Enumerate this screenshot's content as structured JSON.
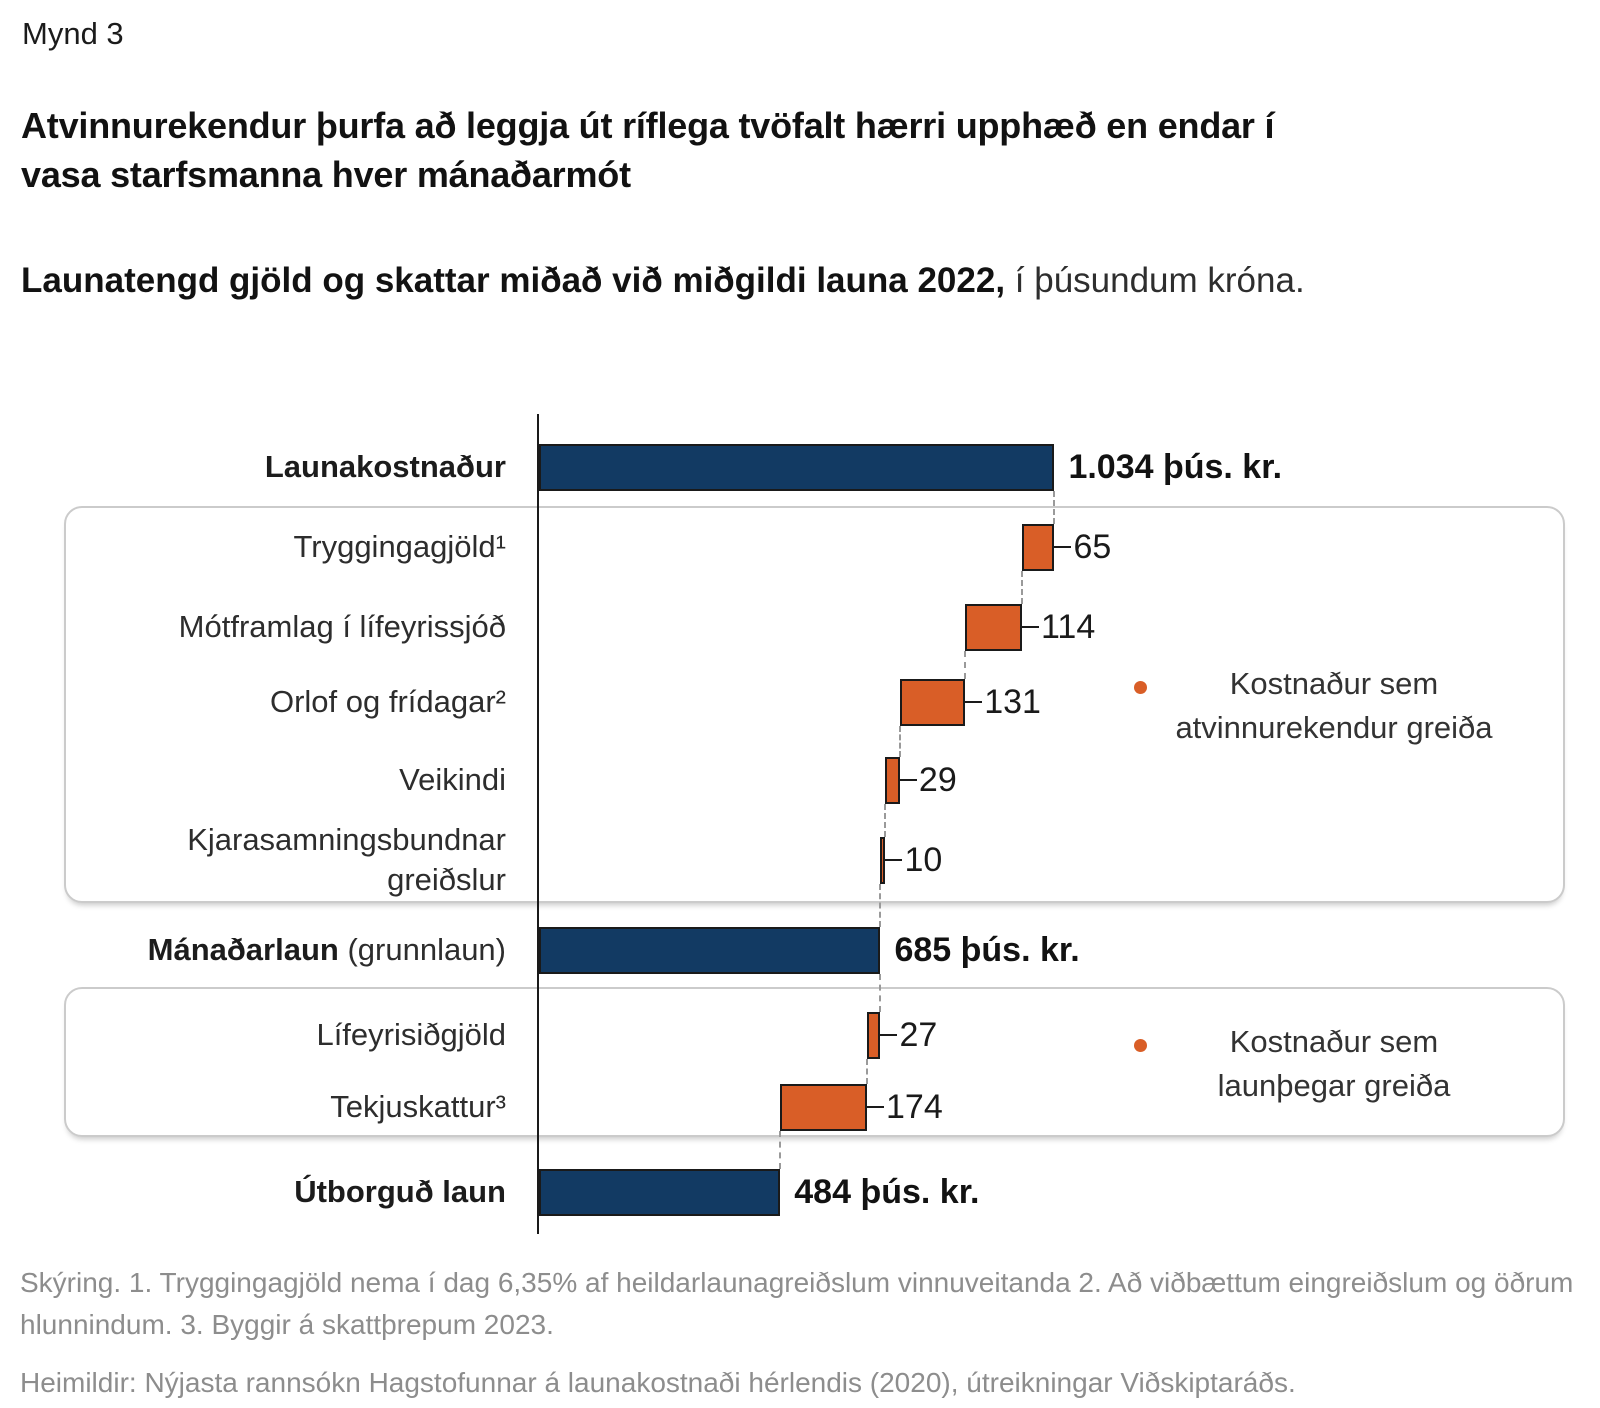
{
  "header": {
    "figure_label": "Mynd 3",
    "title_line1": "Atvinnurekendur þurfa að leggja út ríflega tvöfalt hærri upphæð en endar í",
    "title_line2": "vasa starfsmanna hver mánaðarmót",
    "subtitle_bold": "Launatengd gjöld og skattar miðað við miðgildi launa 2022,",
    "subtitle_regular": " í þúsundum króna."
  },
  "chart_data": {
    "type": "bar",
    "subtype": "horizontal-waterfall",
    "title": "Launatengd gjöld og skattar miðað við miðgildi launa 2022, í þúsundum króna",
    "unit": "þúsund krónur",
    "axis_range": [
      0,
      1100
    ],
    "grid": false,
    "colors": {
      "navy": "#123A63",
      "orange": "#D95E27",
      "bar_border": "#1A1A1A",
      "connector": "#9A9A9A",
      "box_border": "#CBCBCB"
    },
    "rows": [
      {
        "label_lines": [
          [
            {
              "t": "Launakostnaður",
              "b": true
            }
          ]
        ],
        "value": 1034,
        "from": 0,
        "to": 1034,
        "fill": "navy",
        "value_label": "1.034 þús. kr.",
        "value_bold": true
      },
      {
        "label_lines": [
          [
            {
              "t": "Tryggingagjöld¹"
            }
          ]
        ],
        "value": 65,
        "from": 969,
        "to": 1034,
        "fill": "orange",
        "value_label": "65",
        "group": 0
      },
      {
        "label_lines": [
          [
            {
              "t": "Mótframlag í lífeyrissjóð"
            }
          ]
        ],
        "value": 114,
        "from": 855,
        "to": 969,
        "fill": "orange",
        "value_label": "114",
        "group": 0
      },
      {
        "label_lines": [
          [
            {
              "t": "Orlof og frídagar²"
            }
          ]
        ],
        "value": 131,
        "from": 724,
        "to": 855,
        "fill": "orange",
        "value_label": "131",
        "group": 0
      },
      {
        "label_lines": [
          [
            {
              "t": "Veikindi"
            }
          ]
        ],
        "value": 29,
        "from": 695,
        "to": 724,
        "fill": "orange",
        "value_label": "29",
        "group": 0
      },
      {
        "label_lines": [
          [
            {
              "t": "Kjarasamningsbundnar"
            }
          ],
          [
            {
              "t": "greiðslur"
            }
          ]
        ],
        "value": 10,
        "from": 685,
        "to": 695,
        "fill": "orange",
        "value_label": "10",
        "group": 0
      },
      {
        "label_lines": [
          [
            {
              "t": "Mánaðarlaun",
              "b": true
            },
            {
              "t": " (grunnlaun)"
            }
          ]
        ],
        "value": 685,
        "from": 0,
        "to": 685,
        "fill": "navy",
        "value_label": "685 þús. kr.",
        "value_bold": true
      },
      {
        "label_lines": [
          [
            {
              "t": "Lífeyrisiðgjöld"
            }
          ]
        ],
        "value": 27,
        "from": 658,
        "to": 685,
        "fill": "orange",
        "value_label": "27",
        "group": 1
      },
      {
        "label_lines": [
          [
            {
              "t": "Tekjuskattur³"
            }
          ]
        ],
        "value": 174,
        "from": 484,
        "to": 658,
        "fill": "orange",
        "value_label": "174",
        "group": 1
      },
      {
        "label_lines": [
          [
            {
              "t": "Útborguð laun",
              "b": true
            }
          ]
        ],
        "value": 484,
        "from": 0,
        "to": 484,
        "fill": "navy",
        "value_label": "484 þús. kr.",
        "value_bold": true
      }
    ],
    "legends": [
      {
        "bullet_color": "#D95E27",
        "lines": [
          "Kostnaður sem",
          "atvinnurekendur greiða"
        ]
      },
      {
        "bullet_color": "#D95E27",
        "lines": [
          "Kostnaður sem",
          "launþegar greiða"
        ]
      }
    ]
  },
  "footer": {
    "note_line1": "Skýring. 1. Tryggingagjöld nema í dag 6,35% af heildarlaunagreiðslum vinnuveitanda 2. Að viðbættum eingreiðslum og öðrum",
    "note_line2": "hlunnindum. 3. Byggir á skattþrepum 2023.",
    "source": "Heimildir: Nýjasta rannsókn Hagstofunnar á launakostnaði hérlendis (2020), útreikningar Viðskiptaráðs."
  }
}
